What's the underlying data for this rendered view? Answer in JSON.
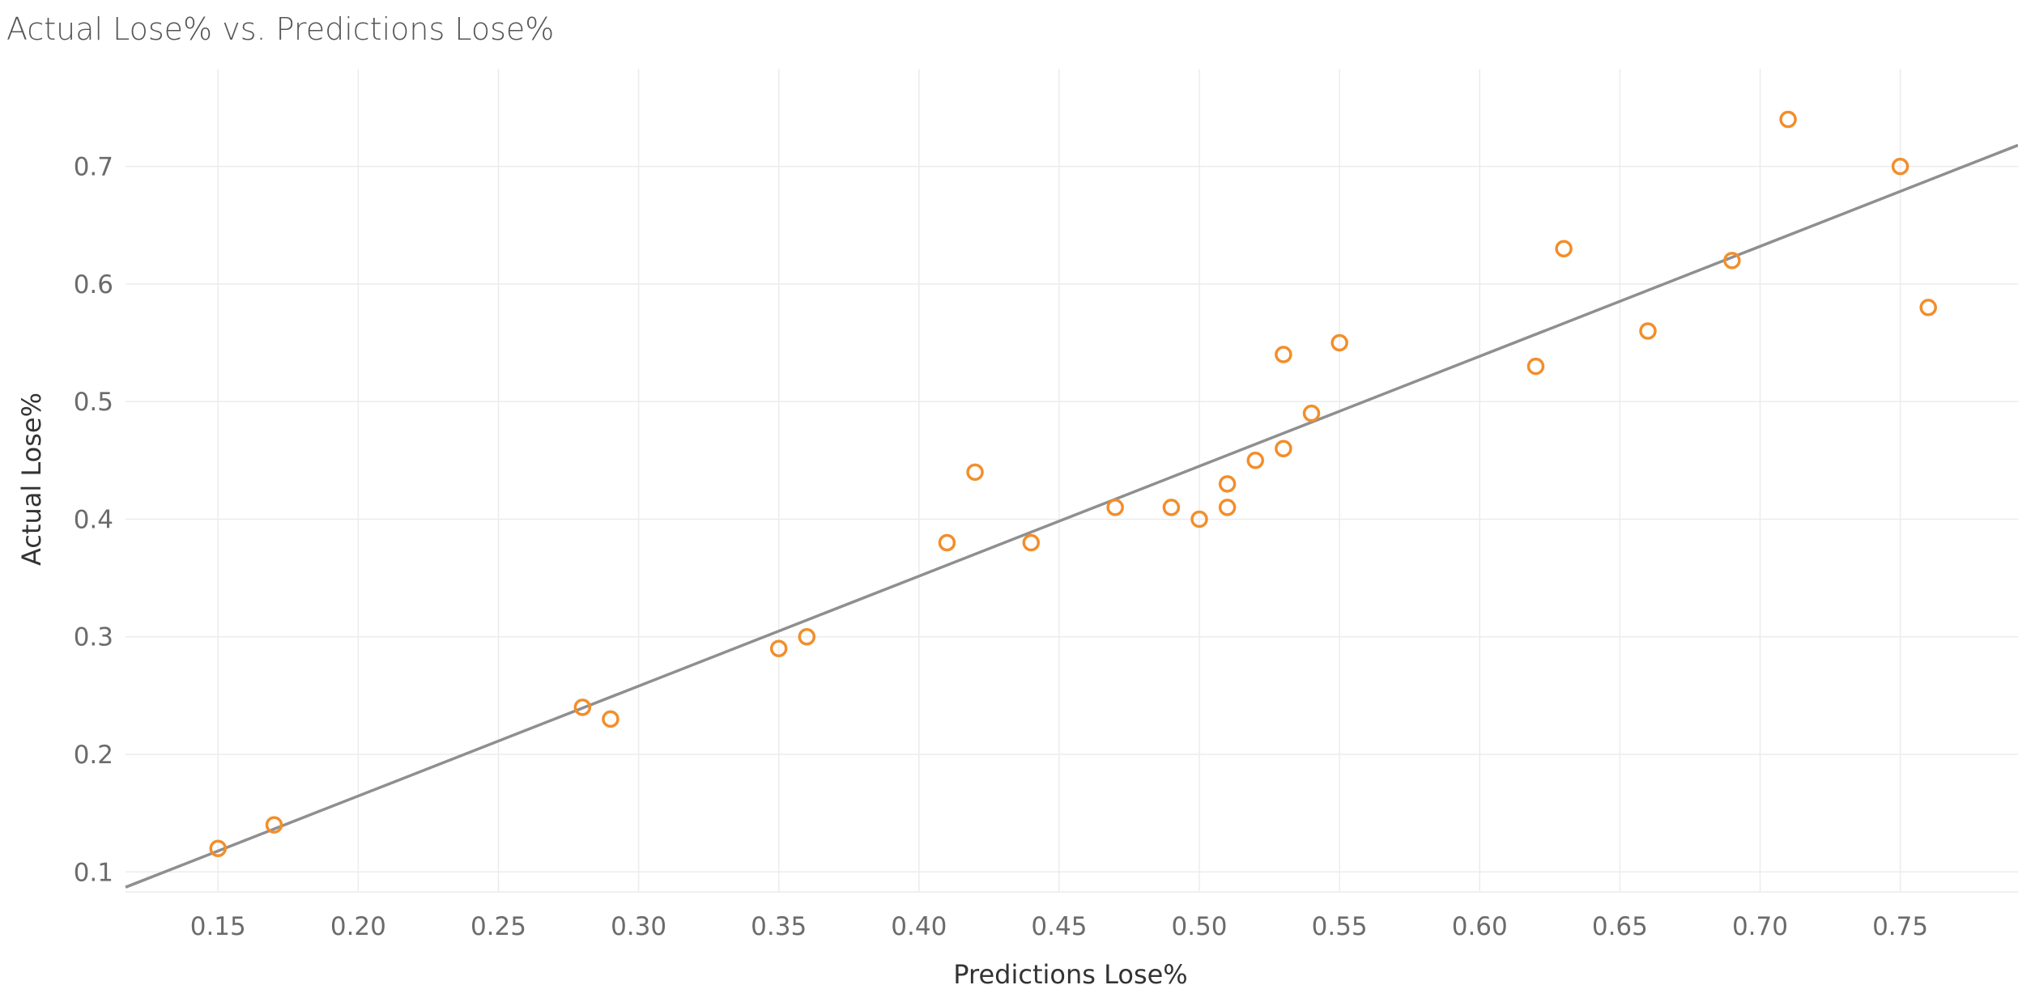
{
  "chart_data": {
    "type": "scatter",
    "title": "Actual Lose% vs. Predictions Lose%",
    "xlabel": "Predictions Lose%",
    "ylabel": "Actual Lose%",
    "xlim": [
      0.117,
      0.792
    ],
    "ylim": [
      0.083,
      0.783
    ],
    "x_ticks": [
      "0.15",
      "0.20",
      "0.25",
      "0.30",
      "0.35",
      "0.40",
      "0.45",
      "0.50",
      "0.55",
      "0.60",
      "0.65",
      "0.70",
      "0.75"
    ],
    "y_ticks": [
      "0.1",
      "0.2",
      "0.3",
      "0.4",
      "0.5",
      "0.6",
      "0.7"
    ],
    "grid": true,
    "series": [
      {
        "x": [
          0.15,
          0.17,
          0.28,
          0.29,
          0.35,
          0.36,
          0.41,
          0.42,
          0.44,
          0.47,
          0.49,
          0.5,
          0.51,
          0.51,
          0.52,
          0.53,
          0.53,
          0.54,
          0.55,
          0.62,
          0.63,
          0.66,
          0.69,
          0.71,
          0.75,
          0.76
        ],
        "y": [
          0.12,
          0.14,
          0.24,
          0.23,
          0.29,
          0.3,
          0.38,
          0.44,
          0.38,
          0.41,
          0.41,
          0.4,
          0.41,
          0.43,
          0.45,
          0.46,
          0.54,
          0.49,
          0.55,
          0.53,
          0.63,
          0.56,
          0.62,
          0.74,
          0.7,
          0.58
        ]
      }
    ],
    "trend_line": {
      "x": [
        0.117,
        0.792
      ],
      "y": [
        0.087,
        0.718
      ]
    },
    "colors": {
      "points": "#f28e2b",
      "trend": "#8f8f8f",
      "grid": "#ececec"
    }
  }
}
